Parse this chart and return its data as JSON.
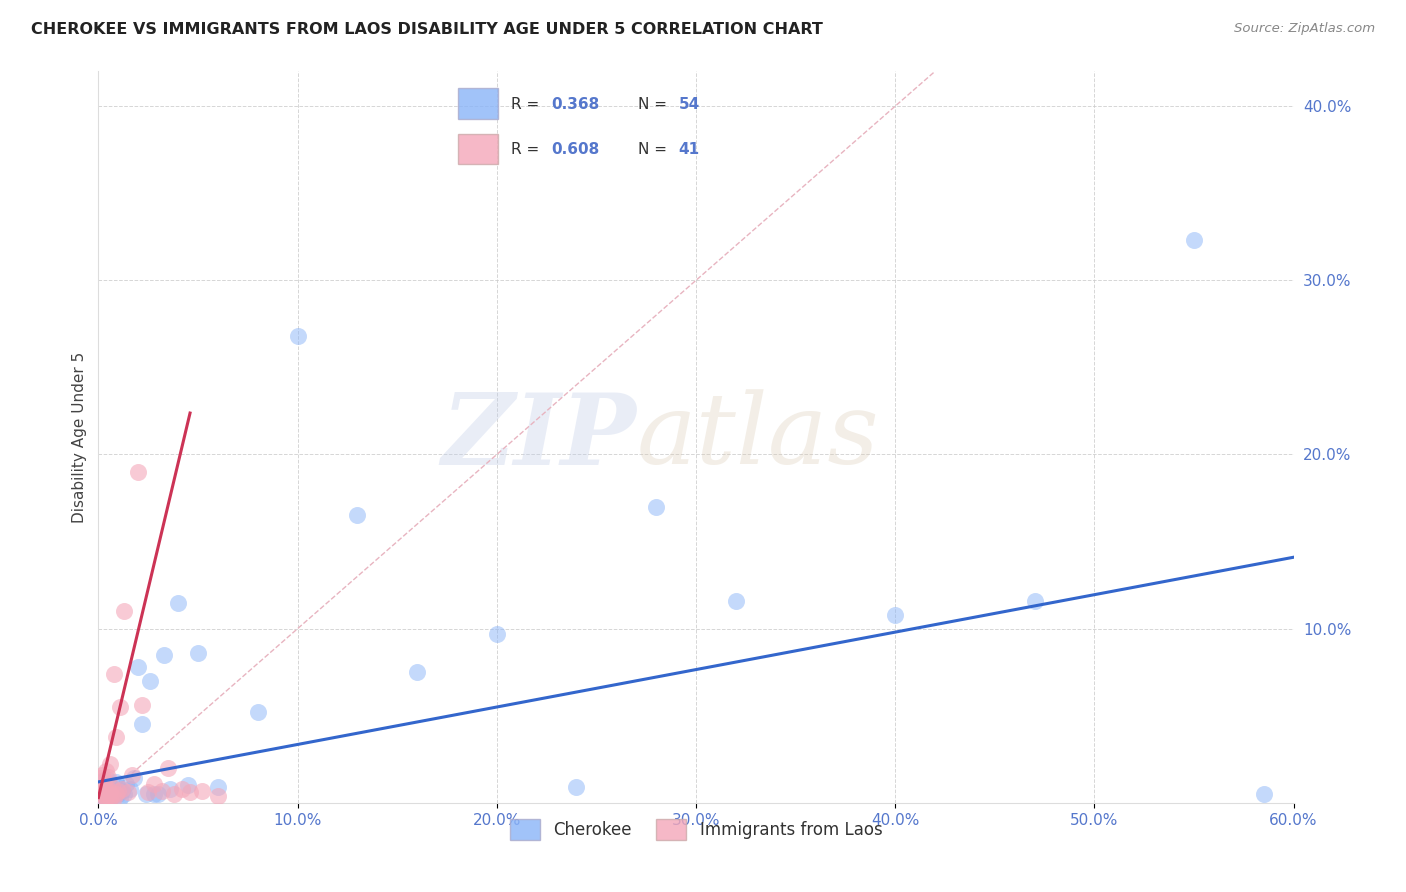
{
  "title": "CHEROKEE VS IMMIGRANTS FROM LAOS DISABILITY AGE UNDER 5 CORRELATION CHART",
  "source": "Source: ZipAtlas.com",
  "ylabel": "Disability Age Under 5",
  "xlim": [
    0.0,
    0.6
  ],
  "ylim": [
    0.0,
    0.42
  ],
  "xticks": [
    0.0,
    0.1,
    0.2,
    0.3,
    0.4,
    0.5,
    0.6
  ],
  "yticks": [
    0.0,
    0.1,
    0.2,
    0.3,
    0.4
  ],
  "xtick_labels": [
    "0.0%",
    "10.0%",
    "20.0%",
    "30.0%",
    "40.0%",
    "50.0%",
    "60.0%"
  ],
  "ytick_labels_right": [
    "",
    "10.0%",
    "20.0%",
    "30.0%",
    "40.0%"
  ],
  "legend_blue_r": "R = 0.368",
  "legend_blue_n": "N = 54",
  "legend_pink_r": "R = 0.608",
  "legend_pink_n": "N = 41",
  "blue_color": "#8ab4f8",
  "pink_color": "#f4a7b9",
  "blue_line_color": "#3366cc",
  "pink_line_color": "#cc3355",
  "diag_color": "#e8b4c0",
  "background_color": "#ffffff",
  "grid_color": "#cccccc",
  "watermark_zip": "ZIP",
  "watermark_atlas": "atlas",
  "title_color": "#222222",
  "tick_color": "#5577cc",
  "cherokee_x": [
    0.001,
    0.001,
    0.001,
    0.002,
    0.002,
    0.002,
    0.003,
    0.003,
    0.003,
    0.004,
    0.004,
    0.005,
    0.005,
    0.005,
    0.006,
    0.006,
    0.006,
    0.007,
    0.007,
    0.008,
    0.009,
    0.009,
    0.01,
    0.01,
    0.011,
    0.012,
    0.013,
    0.014,
    0.016,
    0.018,
    0.02,
    0.022,
    0.024,
    0.026,
    0.028,
    0.03,
    0.033,
    0.036,
    0.04,
    0.045,
    0.05,
    0.06,
    0.08,
    0.1,
    0.13,
    0.16,
    0.2,
    0.24,
    0.28,
    0.32,
    0.4,
    0.47,
    0.55,
    0.585
  ],
  "cherokee_y": [
    0.005,
    0.008,
    0.012,
    0.004,
    0.007,
    0.01,
    0.003,
    0.006,
    0.009,
    0.005,
    0.011,
    0.004,
    0.007,
    0.013,
    0.003,
    0.006,
    0.01,
    0.004,
    0.008,
    0.005,
    0.007,
    0.012,
    0.005,
    0.009,
    0.003,
    0.007,
    0.005,
    0.011,
    0.008,
    0.014,
    0.078,
    0.045,
    0.005,
    0.07,
    0.005,
    0.005,
    0.085,
    0.008,
    0.115,
    0.01,
    0.086,
    0.009,
    0.052,
    0.268,
    0.165,
    0.075,
    0.097,
    0.009,
    0.17,
    0.116,
    0.108,
    0.116,
    0.323,
    0.005
  ],
  "laos_x": [
    0.001,
    0.001,
    0.001,
    0.002,
    0.002,
    0.002,
    0.003,
    0.003,
    0.003,
    0.004,
    0.004,
    0.004,
    0.005,
    0.005,
    0.005,
    0.006,
    0.006,
    0.006,
    0.007,
    0.007,
    0.008,
    0.008,
    0.009,
    0.009,
    0.01,
    0.011,
    0.012,
    0.013,
    0.015,
    0.017,
    0.02,
    0.022,
    0.025,
    0.028,
    0.032,
    0.035,
    0.038,
    0.042,
    0.046,
    0.052,
    0.06
  ],
  "laos_y": [
    0.003,
    0.007,
    0.014,
    0.005,
    0.008,
    0.016,
    0.004,
    0.009,
    0.013,
    0.003,
    0.007,
    0.018,
    0.004,
    0.008,
    0.015,
    0.003,
    0.006,
    0.022,
    0.004,
    0.009,
    0.003,
    0.074,
    0.005,
    0.038,
    0.007,
    0.055,
    0.008,
    0.11,
    0.006,
    0.016,
    0.19,
    0.056,
    0.006,
    0.011,
    0.007,
    0.02,
    0.005,
    0.008,
    0.006,
    0.007,
    0.004
  ],
  "blue_slope": 0.215,
  "blue_intercept": 0.012,
  "pink_slope": 4.8,
  "pink_intercept": 0.003
}
